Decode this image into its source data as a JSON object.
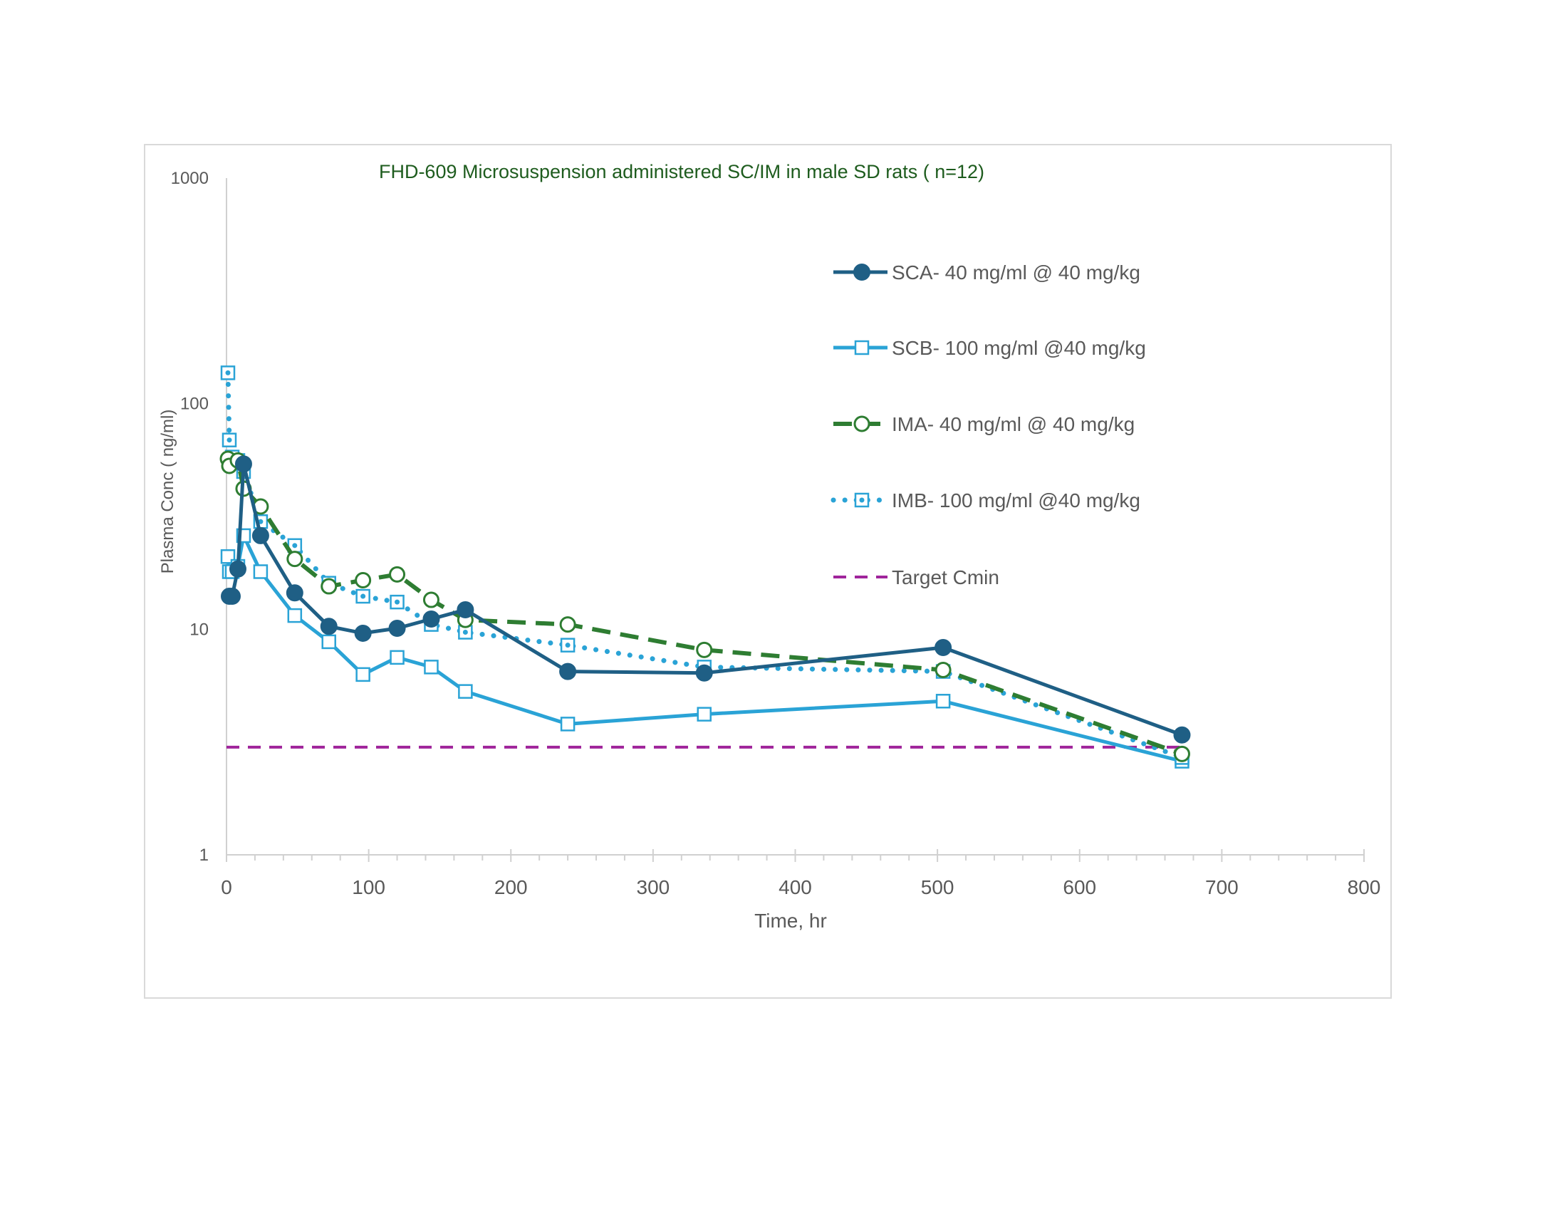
{
  "chart_data": {
    "type": "line",
    "title": "FHD-609 Microsuspension administered SC/IM in male SD rats ( n=12)",
    "xlabel": "Time, hr",
    "ylabel": "Plasma Conc ( ng/ml)",
    "xlim": [
      0,
      800
    ],
    "ylim": [
      1,
      1000
    ],
    "yscale": "log",
    "x_ticks": [
      "0",
      "100",
      "200",
      "300",
      "400",
      "500",
      "600",
      "700",
      "800"
    ],
    "y_ticks": [
      "1",
      "10",
      "100",
      "1000"
    ],
    "grid": false,
    "legend_position": "right",
    "series": [
      {
        "name": "SCA- 40 mg/ml @ 40 mg/kg",
        "color": "#1f5f85",
        "style": "solid",
        "marker": "filled-circle",
        "x": [
          2,
          4,
          8,
          12,
          24,
          48,
          72,
          96,
          120,
          144,
          168,
          240,
          336,
          504,
          672
        ],
        "y": [
          14,
          14,
          18.5,
          54,
          26,
          14.5,
          10.3,
          9.6,
          10.1,
          11.1,
          12.2,
          6.5,
          6.4,
          8.3,
          3.4
        ]
      },
      {
        "name": "SCB- 100 mg/ml @40 mg/kg",
        "color": "#2aa3d6",
        "style": "solid",
        "marker": "open-square",
        "x": [
          1,
          2,
          4,
          8,
          12,
          24,
          48,
          72,
          96,
          120,
          144,
          168,
          240,
          336,
          504,
          672
        ],
        "y": [
          21,
          18,
          18,
          19,
          26,
          18,
          11.5,
          8.8,
          6.3,
          7.5,
          6.8,
          5.3,
          3.8,
          4.2,
          4.8,
          2.6
        ]
      },
      {
        "name": "IMA- 40 mg/ml @ 40 mg/kg",
        "color": "#2e7d32",
        "style": "dashed",
        "marker": "open-circle",
        "x": [
          1,
          2,
          8,
          12,
          24,
          48,
          72,
          96,
          120,
          144,
          168,
          240,
          336,
          504,
          672
        ],
        "y": [
          57,
          53,
          56,
          42,
          35,
          20.5,
          15.5,
          16.5,
          17.5,
          13.5,
          11,
          10.5,
          8.1,
          6.6,
          2.8
        ]
      },
      {
        "name": "IMB- 100 mg/ml @40 mg/kg",
        "color": "#2aa3d6",
        "style": "dotted",
        "marker": "open-square-dot",
        "x": [
          1,
          2,
          4,
          8,
          12,
          24,
          48,
          72,
          96,
          120,
          144,
          168,
          240,
          336,
          504,
          672
        ],
        "y": [
          137,
          69,
          58,
          56,
          50,
          30,
          23.5,
          16,
          14,
          13.2,
          10.5,
          9.7,
          8.5,
          6.8,
          6.5,
          2.7
        ]
      },
      {
        "name": "Target Cmin",
        "color": "#a0249b",
        "style": "dashed-thin",
        "marker": "none",
        "x": [
          0,
          672
        ],
        "y": [
          3,
          3
        ]
      }
    ]
  }
}
